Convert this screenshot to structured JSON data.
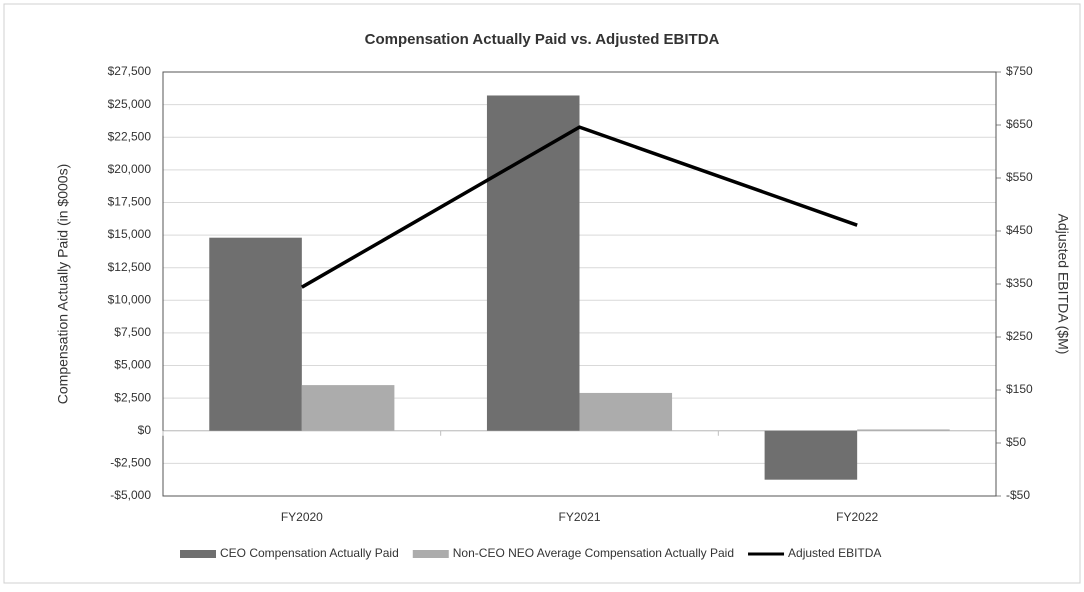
{
  "chart_data": {
    "type": "bar-line",
    "title": "Compensation Actually Paid vs. Adjusted EBITDA",
    "y_label": "Compensation Actually Paid (in $000s)",
    "y2_label": "Adjusted EBITDA ($M)",
    "categories": [
      "FY2020",
      "FY2021",
      "FY2022"
    ],
    "series": [
      {
        "name": "CEO Compensation Actually Paid",
        "type": "bar",
        "color": "#6f6f6f",
        "values": [
          14800,
          25700,
          -3750
        ]
      },
      {
        "name": "Non-CEO NEO Average Compensation Actually Paid",
        "type": "bar",
        "color": "#acacac",
        "values": [
          3500,
          2900,
          100
        ]
      },
      {
        "name": "Adjusted EBITDA",
        "type": "line",
        "color": "#000000",
        "axis": "y2",
        "values": [
          344,
          646,
          461
        ]
      }
    ],
    "ylim": [
      -5000,
      27500
    ],
    "yticks": [
      {
        "value": -5000,
        "label": "-$5,000"
      },
      {
        "value": -2500,
        "label": "-$2,500"
      },
      {
        "value": 0,
        "label": "$0"
      },
      {
        "value": 2500,
        "label": "$2,500"
      },
      {
        "value": 5000,
        "label": "$5,000"
      },
      {
        "value": 7500,
        "label": "$7,500"
      },
      {
        "value": 10000,
        "label": "$10,000"
      },
      {
        "value": 12500,
        "label": "$12,500"
      },
      {
        "value": 15000,
        "label": "$15,000"
      },
      {
        "value": 17500,
        "label": "$17,500"
      },
      {
        "value": 20000,
        "label": "$20,000"
      },
      {
        "value": 22500,
        "label": "$22,500"
      },
      {
        "value": 25000,
        "label": "$25,000"
      },
      {
        "value": 27500,
        "label": "$27,500"
      }
    ],
    "y2lim": [
      -50,
      750
    ],
    "y2ticks": [
      {
        "value": -50,
        "label": "-$50"
      },
      {
        "value": 50,
        "label": "$50"
      },
      {
        "value": 150,
        "label": "$150"
      },
      {
        "value": 250,
        "label": "$250"
      },
      {
        "value": 350,
        "label": "$350"
      },
      {
        "value": 450,
        "label": "$450"
      },
      {
        "value": 550,
        "label": "$550"
      },
      {
        "value": 650,
        "label": "$650"
      },
      {
        "value": 750,
        "label": "$750"
      }
    ],
    "grid": true
  }
}
